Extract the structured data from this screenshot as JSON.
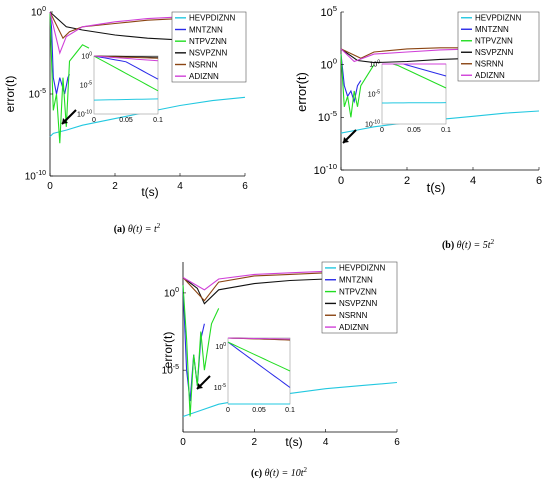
{
  "legend_entries": [
    "HEVPDIZNN",
    "MNTZNN",
    "NTPVZNN",
    "NSVPZNN",
    "NSRNN",
    "ADIZNN"
  ],
  "chart_data": [
    {
      "type": "line",
      "panel": "a",
      "caption_label": "(a)",
      "caption_expr": "θ(t) = t",
      "caption_sup": "2",
      "xlabel": "t(s)",
      "ylabel": "error(t)",
      "xlim": [
        0,
        6
      ],
      "ylim_exp": [
        -10,
        0
      ],
      "yscale": "log",
      "xticks": [
        "0",
        "2",
        "4",
        "6"
      ],
      "yticks": [
        {
          "base": "10",
          "exp": "0",
          "e": 0
        },
        {
          "base": "10",
          "exp": "-5",
          "e": -5
        },
        {
          "base": "10",
          "exp": "-10",
          "e": -10
        }
      ],
      "legend_placement": "top-right",
      "inset": {
        "xlim": [
          0,
          0.1
        ],
        "ylim_exp": [
          -10,
          0
        ],
        "xticks": [
          "0",
          "0.05",
          "0.1"
        ],
        "yticks": [
          {
            "base": "10",
            "exp": "0",
            "e": 0
          },
          {
            "base": "10",
            "exp": "-5",
            "e": -5
          },
          {
            "base": "10",
            "exp": "-10",
            "e": -10
          }
        ]
      },
      "series": [
        {
          "name": "HEVPDIZNN",
          "color": "#22c8e0",
          "x": [
            0,
            0.1,
            0.5,
            1,
            2,
            3,
            4,
            5,
            6
          ],
          "y_exp": [
            -7.6,
            -7.4,
            -7.2,
            -6.9,
            -6.5,
            -6.1,
            -5.7,
            -5.4,
            -5.2
          ]
        },
        {
          "name": "MNTZNN",
          "color": "#2a2ae8",
          "x": [
            0,
            0.05,
            0.1,
            0.2,
            0.3,
            0.45,
            0.5,
            0.55,
            0.6
          ],
          "y_exp": [
            0,
            -1,
            -4,
            -5,
            -4,
            -5,
            -4.5,
            -4,
            -3.8
          ]
        },
        {
          "name": "NTPVZNN",
          "color": "#22dd22",
          "x": [
            0,
            0.05,
            0.1,
            0.2,
            0.3,
            0.4,
            0.5,
            0.6,
            0.8,
            1,
            1.2
          ],
          "y_exp": [
            0,
            -3,
            -6,
            -5,
            -8,
            -4,
            -7,
            -3,
            -2.5,
            -2,
            -2.2
          ]
        },
        {
          "name": "NSVPZNN",
          "color": "#111111",
          "x": [
            0,
            0.5,
            1,
            2,
            3,
            4,
            5,
            6
          ],
          "y_exp": [
            0,
            -0.9,
            -1.1,
            -1.4,
            -1.6,
            -1.7,
            -1.8,
            -1.8
          ]
        },
        {
          "name": "NSRNN",
          "color": "#8b4513",
          "x": [
            0,
            0.4,
            0.6,
            1,
            2,
            3,
            4,
            5,
            6
          ],
          "y_exp": [
            0,
            -1.6,
            -1.2,
            -0.9,
            -0.7,
            -0.5,
            -0.4,
            -0.3,
            -0.2
          ]
        },
        {
          "name": "ADIZNN",
          "color": "#d040d8",
          "x": [
            0,
            0.3,
            0.5,
            1,
            2,
            3,
            4,
            5,
            6
          ],
          "y_exp": [
            0,
            -2.5,
            -1.5,
            -0.9,
            -0.6,
            -0.4,
            -0.3,
            -0.2,
            -0.1
          ]
        }
      ]
    },
    {
      "type": "line",
      "panel": "b",
      "caption_label": "(b)",
      "caption_expr": "θ(t) = 5t",
      "caption_sup": "2",
      "xlabel": "t(s)",
      "ylabel": "error(t)",
      "xlim": [
        0,
        6
      ],
      "ylim_exp": [
        -10,
        5
      ],
      "yscale": "log",
      "xticks": [
        "0",
        "2",
        "4",
        "6"
      ],
      "yticks": [
        {
          "base": "10",
          "exp": "5",
          "e": 5
        },
        {
          "base": "10",
          "exp": "0",
          "e": 0
        },
        {
          "base": "10",
          "exp": "-5",
          "e": -5
        },
        {
          "base": "10",
          "exp": "-10",
          "e": -10
        }
      ],
      "legend_placement": "top-right",
      "inset": {
        "xlim": [
          0,
          0.1
        ],
        "ylim_exp": [
          -10,
          0
        ],
        "xticks": [
          "0",
          "0.05",
          "0.1"
        ],
        "yticks": [
          {
            "base": "10",
            "exp": "0",
            "e": 0
          },
          {
            "base": "10",
            "exp": "-5",
            "e": -5
          },
          {
            "base": "10",
            "exp": "-10",
            "e": -10
          }
        ]
      },
      "series": [
        {
          "name": "HEVPDIZNN",
          "color": "#22c8e0",
          "x": [
            0,
            0.5,
            1,
            2,
            3,
            4,
            5,
            6
          ],
          "y_exp": [
            -6.5,
            -6.2,
            -5.9,
            -5.5,
            -5.2,
            -4.9,
            -4.6,
            -4.4
          ]
        },
        {
          "name": "MNTZNN",
          "color": "#2a2ae8",
          "x": [
            0,
            0.1,
            0.2,
            0.3,
            0.4,
            0.5,
            0.6
          ],
          "y_exp": [
            1,
            -2,
            -3,
            -2.5,
            -3.5,
            -2,
            -1.5
          ]
        },
        {
          "name": "NTPVZNN",
          "color": "#22dd22",
          "x": [
            0,
            0.1,
            0.2,
            0.3,
            0.4,
            0.5,
            0.6,
            0.8,
            1
          ],
          "y_exp": [
            1,
            -4,
            -3,
            -5,
            -2.5,
            -4,
            -2,
            -1,
            0
          ]
        },
        {
          "name": "NSVPZNN",
          "color": "#111111",
          "x": [
            0,
            0.5,
            1,
            2,
            3,
            4,
            5,
            6
          ],
          "y_exp": [
            1.5,
            0.4,
            0.2,
            0.3,
            0.5,
            0.6,
            0.6,
            0.7
          ]
        },
        {
          "name": "NSRNN",
          "color": "#8b4513",
          "x": [
            0,
            0.6,
            1,
            2,
            3,
            4,
            5,
            6
          ],
          "y_exp": [
            1.5,
            0.6,
            1.2,
            1.5,
            1.6,
            1.6,
            1.7,
            1.7
          ]
        },
        {
          "name": "ADIZNN",
          "color": "#d040d8",
          "x": [
            0,
            0.4,
            1,
            2,
            3,
            4,
            5,
            6
          ],
          "y_exp": [
            1.5,
            0.3,
            1.0,
            1.2,
            1.4,
            1.5,
            1.6,
            1.6
          ]
        }
      ]
    },
    {
      "type": "line",
      "panel": "c",
      "caption_label": "(c)",
      "caption_expr": "θ(t) = 10t",
      "caption_sup": "2",
      "xlabel": "t(s)",
      "ylabel": "error(t)",
      "xlim": [
        0,
        6
      ],
      "ylim_exp": [
        -9,
        2
      ],
      "yscale": "log",
      "xticks": [
        "0",
        "2",
        "4",
        "6"
      ],
      "yticks": [
        {
          "base": "10",
          "exp": "0",
          "e": 0
        },
        {
          "base": "10",
          "exp": "-5",
          "e": -5
        }
      ],
      "legend_placement": "top-right",
      "inset": {
        "xlim": [
          0,
          0.1
        ],
        "ylim_exp": [
          -7,
          1
        ],
        "xticks": [
          "0",
          "0.05",
          "0.1"
        ],
        "yticks": [
          {
            "base": "10",
            "exp": "0",
            "e": 0
          },
          {
            "base": "10",
            "exp": "-5",
            "e": -5
          }
        ]
      },
      "series": [
        {
          "name": "HEVPDIZNN",
          "color": "#22c8e0",
          "x": [
            0,
            0.5,
            1,
            2,
            3,
            4,
            5,
            6
          ],
          "y_exp": [
            -8,
            -7.6,
            -7.2,
            -6.8,
            -6.5,
            -6.2,
            -6.0,
            -5.8
          ]
        },
        {
          "name": "MNTZNN",
          "color": "#2a2ae8",
          "x": [
            0,
            0.1,
            0.2,
            0.3,
            0.4,
            0.5,
            0.6
          ],
          "y_exp": [
            0.5,
            -5,
            -7,
            -4,
            -6,
            -3,
            -2
          ]
        },
        {
          "name": "NTPVZNN",
          "color": "#22dd22",
          "x": [
            0,
            0.1,
            0.2,
            0.3,
            0.4,
            0.5,
            0.6,
            0.8,
            1
          ],
          "y_exp": [
            0.5,
            -3,
            -8,
            -4,
            -6,
            -2.5,
            -5,
            -2,
            -1
          ]
        },
        {
          "name": "NSVPZNN",
          "color": "#111111",
          "x": [
            0,
            0.4,
            0.6,
            1,
            2,
            3,
            4,
            5,
            6
          ],
          "y_exp": [
            1,
            0.3,
            -0.7,
            0.2,
            0.6,
            0.8,
            0.9,
            1.0,
            1.0
          ]
        },
        {
          "name": "NSRNN",
          "color": "#8b4513",
          "x": [
            0,
            0.6,
            1,
            2,
            3,
            4,
            5,
            6
          ],
          "y_exp": [
            1,
            -0.5,
            0.7,
            1.1,
            1.2,
            1.3,
            1.3,
            1.4
          ]
        },
        {
          "name": "ADIZNN",
          "color": "#d040d8",
          "x": [
            0,
            0.6,
            1,
            2,
            3,
            4,
            5,
            6
          ],
          "y_exp": [
            1,
            0.2,
            0.9,
            1.2,
            1.3,
            1.4,
            1.5,
            1.5
          ]
        }
      ]
    }
  ]
}
